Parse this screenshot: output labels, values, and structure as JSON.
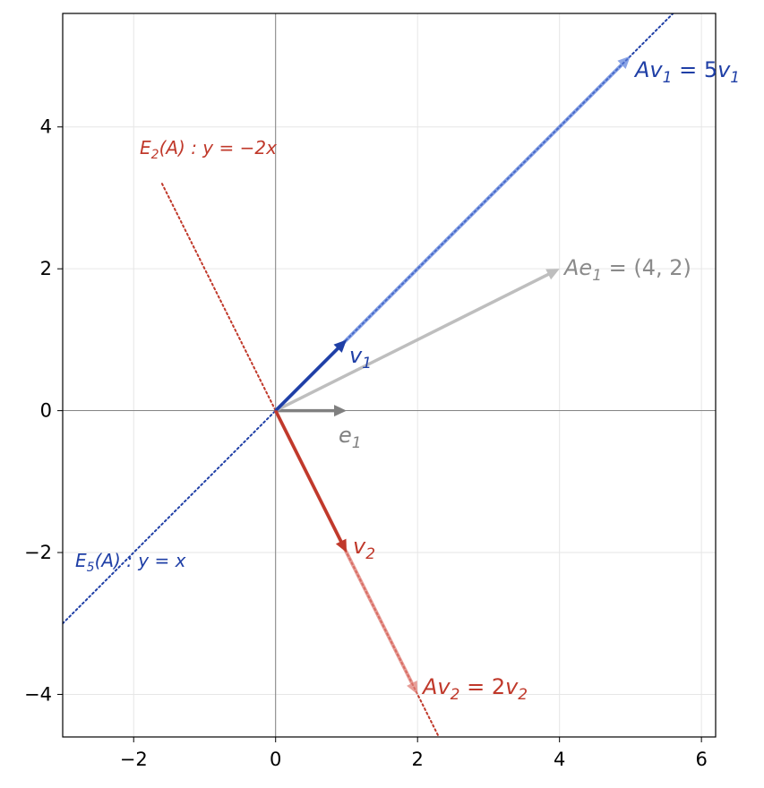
{
  "chart_data": {
    "type": "vector-plot",
    "title": "",
    "xlabel": "",
    "ylabel": "",
    "xlim": [
      -3,
      6.2
    ],
    "ylim": [
      -4.6,
      5.6
    ],
    "grid": true,
    "x_ticks": [
      {
        "value": -2,
        "label": "−2"
      },
      {
        "value": 0,
        "label": "0"
      },
      {
        "value": 2,
        "label": "2"
      },
      {
        "value": 4,
        "label": "4"
      },
      {
        "value": 6,
        "label": "6"
      }
    ],
    "y_ticks": [
      {
        "value": -4,
        "label": "−4"
      },
      {
        "value": -2,
        "label": "−2"
      },
      {
        "value": 0,
        "label": "0"
      },
      {
        "value": 2,
        "label": "2"
      },
      {
        "value": 4,
        "label": "4"
      }
    ],
    "eigenlines": [
      {
        "name": "E5",
        "x1": -3,
        "y1": -3,
        "x2": 5.6,
        "y2": 5.6,
        "color": "#1f3fa6"
      },
      {
        "name": "E2",
        "x1": -1.6,
        "y1": 3.2,
        "x2": 2.3,
        "y2": -4.6,
        "color": "#c0392b"
      }
    ],
    "vectors": [
      {
        "name": "e1",
        "x": 1,
        "y": 0,
        "color": "#808080",
        "opacity": 1,
        "width": 3.5
      },
      {
        "name": "Ae1",
        "x": 4,
        "y": 2,
        "color": "#b8b8b8",
        "opacity": 0.9,
        "width": 3.5
      },
      {
        "name": "Av1",
        "x": 5,
        "y": 5,
        "color": "#5b7fdc",
        "opacity": 0.7,
        "width": 4
      },
      {
        "name": "Av2",
        "x": 2,
        "y": -4,
        "color": "#e07f77",
        "opacity": 0.75,
        "width": 4
      },
      {
        "name": "v1",
        "x": 1,
        "y": 1,
        "color": "#1f3fa6",
        "opacity": 1,
        "width": 3.5
      },
      {
        "name": "v2",
        "x": 1,
        "y": -2,
        "color": "#c0392b",
        "opacity": 1,
        "width": 3.5
      }
    ],
    "annotations": {
      "v1": {
        "base": "v",
        "sub": "1"
      },
      "v2": {
        "base": "v",
        "sub": "2"
      },
      "e1": {
        "base": "e",
        "sub": "1"
      },
      "av1": {
        "base": "Av",
        "sub": "1",
        "rest": " = 5",
        "base2": "v",
        "sub2": "1"
      },
      "av2": {
        "base": "Av",
        "sub": "2",
        "rest": " = 2",
        "base2": "v",
        "sub2": "2"
      },
      "ae1": {
        "base": "Ae",
        "sub": "1",
        "rest": " = (4, 2)"
      },
      "e2_label": {
        "base": "E",
        "sub": "2",
        "rest": "(A) : y = −2x"
      },
      "e5_label": {
        "base": "E",
        "sub": "5",
        "rest": "(A) : y = x"
      }
    },
    "colors": {
      "blue": "#1f3fa6",
      "red": "#c0392b",
      "gray": "#808080",
      "light_gray": "#9a9a9a"
    }
  }
}
